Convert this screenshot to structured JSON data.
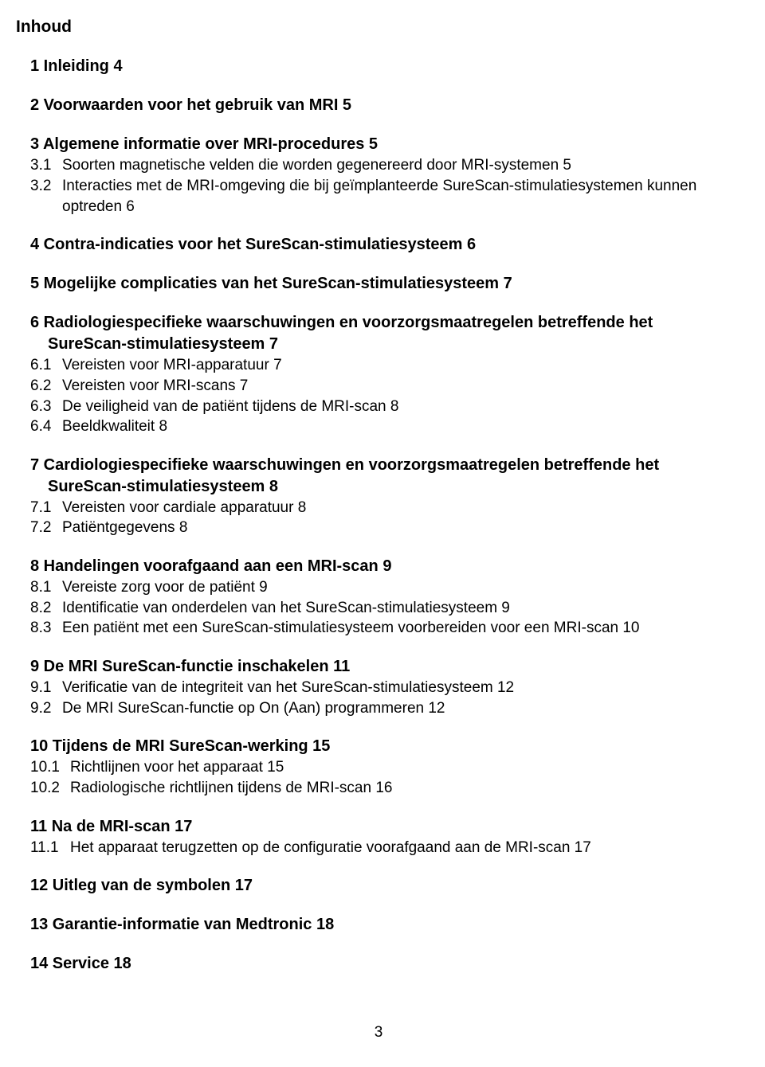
{
  "title": "Inhoud",
  "page_number": "3",
  "sections": [
    {
      "head_num": "1",
      "head_text": "Inleiding",
      "head_page": "4",
      "subs": []
    },
    {
      "head_num": "2",
      "head_text": "Voorwaarden voor het gebruik van MRI",
      "head_page": "5",
      "subs": []
    },
    {
      "head_num": "3",
      "head_text": "Algemene informatie over MRI-procedures",
      "head_page": "5",
      "subs": [
        {
          "num": "3.1",
          "text": "Soorten magnetische velden die worden gegenereerd door MRI-systemen",
          "page": "5"
        },
        {
          "num": "3.2",
          "text": "Interacties met de MRI-omgeving die bij geïmplanteerde SureScan-stimulatiesystemen kunnen optreden",
          "page": "6",
          "wrap": true
        }
      ]
    },
    {
      "head_num": "4",
      "head_text": "Contra-indicaties voor het SureScan-stimulatiesysteem",
      "head_page": "6",
      "subs": []
    },
    {
      "head_num": "5",
      "head_text": "Mogelijke complicaties van het SureScan-stimulatiesysteem",
      "head_page": "7",
      "subs": []
    },
    {
      "head_num": "6",
      "head_text": "Radiologiespecifieke waarschuwingen en voorzorgsmaatregelen betreffende het",
      "head_wrap": "SureScan-stimulatiesysteem",
      "head_page": "7",
      "subs": [
        {
          "num": "6.1",
          "text": "Vereisten voor MRI-apparatuur",
          "page": "7"
        },
        {
          "num": "6.2",
          "text": "Vereisten voor MRI-scans",
          "page": "7"
        },
        {
          "num": "6.3",
          "text": "De veiligheid van de patiënt tijdens de MRI-scan",
          "page": "8"
        },
        {
          "num": "6.4",
          "text": "Beeldkwaliteit",
          "page": "8"
        }
      ]
    },
    {
      "head_num": "7",
      "head_text": "Cardiologiespecifieke waarschuwingen en voorzorgsmaatregelen betreffende het",
      "head_wrap": "SureScan-stimulatiesysteem",
      "head_page": "8",
      "subs": [
        {
          "num": "7.1",
          "text": "Vereisten voor cardiale apparatuur",
          "page": "8"
        },
        {
          "num": "7.2",
          "text": "Patiëntgegevens",
          "page": "8"
        }
      ]
    },
    {
      "head_num": "8",
      "head_text": "Handelingen voorafgaand aan een MRI-scan",
      "head_page": "9",
      "subs": [
        {
          "num": "8.1",
          "text": "Vereiste zorg voor de patiënt",
          "page": "9"
        },
        {
          "num": "8.2",
          "text": "Identificatie van onderdelen van het SureScan-stimulatiesysteem",
          "page": "9"
        },
        {
          "num": "8.3",
          "text": "Een patiënt met een SureScan-stimulatiesysteem voorbereiden voor een MRI-scan",
          "page": "10"
        }
      ]
    },
    {
      "head_num": "9",
      "head_text": "De MRI SureScan-functie inschakelen",
      "head_page": "11",
      "subs": [
        {
          "num": "9.1",
          "text": "Verificatie van de integriteit van het SureScan-stimulatiesysteem",
          "page": "12"
        },
        {
          "num": "9.2",
          "text": "De MRI SureScan-functie op On (Aan) programmeren",
          "page": "12"
        }
      ]
    },
    {
      "head_num": "10",
      "head_text": "Tijdens de MRI SureScan-werking",
      "head_page": "15",
      "wide": true,
      "subs": [
        {
          "num": "10.1",
          "text": "Richtlijnen voor het apparaat",
          "page": "15"
        },
        {
          "num": "10.2",
          "text": "Radiologische richtlijnen tijdens de MRI-scan",
          "page": "16"
        }
      ]
    },
    {
      "head_num": "11",
      "head_text": "Na de MRI-scan",
      "head_page": "17",
      "wide": true,
      "subs": [
        {
          "num": "11.1",
          "text": "Het apparaat terugzetten op de configuratie voorafgaand aan de MRI-scan",
          "page": "17"
        }
      ]
    },
    {
      "head_num": "12",
      "head_text": "Uitleg van de symbolen",
      "head_page": "17",
      "subs": []
    },
    {
      "head_num": "13",
      "head_text": "Garantie-informatie van Medtronic",
      "head_page": "18",
      "subs": []
    },
    {
      "head_num": "14",
      "head_text": "Service",
      "head_page": "18",
      "subs": []
    }
  ]
}
